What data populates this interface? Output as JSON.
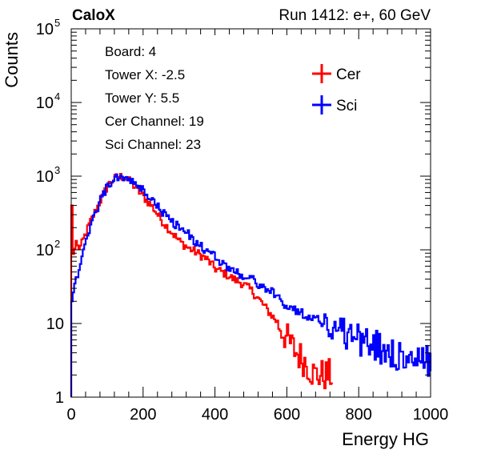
{
  "header": {
    "left_label": "CaloX",
    "right_label": "Run 1412: e+, 60 GeV"
  },
  "info_box": {
    "lines": [
      "Board: 4",
      "Tower X: -2.5",
      "Tower Y: 5.5",
      "Cer Channel: 19",
      "Sci Channel: 23"
    ]
  },
  "legend": {
    "items": [
      {
        "label": "Cer",
        "color": "#ff0000"
      },
      {
        "label": "Sci",
        "color": "#0000ff"
      }
    ]
  },
  "chart_data": {
    "type": "line",
    "style": "step histogram",
    "title": "",
    "xlabel": "Energy HG",
    "ylabel": "Counts",
    "xlim": [
      0,
      1000
    ],
    "ylim": [
      1,
      100000
    ],
    "yscale": "log",
    "grid": false,
    "legend_position": "top-right",
    "x_ticks": [
      0,
      200,
      400,
      600,
      800,
      1000
    ],
    "y_ticks": [
      {
        "base": "1",
        "exp": ""
      },
      {
        "base": "10",
        "exp": ""
      },
      {
        "base": "10",
        "exp": "2"
      },
      {
        "base": "10",
        "exp": "3"
      },
      {
        "base": "10",
        "exp": "4"
      },
      {
        "base": "10",
        "exp": "5"
      }
    ],
    "series": [
      {
        "name": "Cer",
        "color": "#ff0000",
        "points": [
          [
            0,
            400
          ],
          [
            5,
            60
          ],
          [
            10,
            150
          ],
          [
            15,
            110
          ],
          [
            25,
            110
          ],
          [
            35,
            150
          ],
          [
            50,
            230
          ],
          [
            75,
            420
          ],
          [
            100,
            750
          ],
          [
            115,
            900
          ],
          [
            130,
            1000
          ],
          [
            150,
            950
          ],
          [
            175,
            720
          ],
          [
            200,
            520
          ],
          [
            225,
            380
          ],
          [
            250,
            250
          ],
          [
            275,
            180
          ],
          [
            300,
            130
          ],
          [
            325,
            105
          ],
          [
            350,
            90
          ],
          [
            375,
            75
          ],
          [
            400,
            55
          ],
          [
            425,
            48
          ],
          [
            450,
            40
          ],
          [
            475,
            35
          ],
          [
            500,
            28
          ],
          [
            525,
            20
          ],
          [
            550,
            14
          ],
          [
            575,
            10
          ],
          [
            600,
            6
          ],
          [
            625,
            4
          ],
          [
            650,
            3
          ],
          [
            675,
            2
          ],
          [
            700,
            2
          ],
          [
            725,
            2
          ]
        ]
      },
      {
        "name": "Sci",
        "color": "#0000ff",
        "points": [
          [
            0,
            20
          ],
          [
            10,
            40
          ],
          [
            20,
            55
          ],
          [
            35,
            100
          ],
          [
            50,
            200
          ],
          [
            75,
            420
          ],
          [
            100,
            750
          ],
          [
            120,
            900
          ],
          [
            135,
            990
          ],
          [
            150,
            950
          ],
          [
            175,
            780
          ],
          [
            200,
            620
          ],
          [
            225,
            470
          ],
          [
            250,
            330
          ],
          [
            275,
            250
          ],
          [
            300,
            200
          ],
          [
            325,
            160
          ],
          [
            350,
            120
          ],
          [
            375,
            95
          ],
          [
            400,
            80
          ],
          [
            425,
            62
          ],
          [
            450,
            52
          ],
          [
            475,
            45
          ],
          [
            500,
            40
          ],
          [
            525,
            33
          ],
          [
            550,
            28
          ],
          [
            575,
            22
          ],
          [
            600,
            17
          ],
          [
            625,
            15
          ],
          [
            650,
            13
          ],
          [
            675,
            12
          ],
          [
            700,
            10
          ],
          [
            725,
            9
          ],
          [
            750,
            8
          ],
          [
            775,
            7
          ],
          [
            800,
            6
          ],
          [
            825,
            5
          ],
          [
            850,
            5
          ],
          [
            875,
            4
          ],
          [
            900,
            4
          ],
          [
            925,
            3
          ],
          [
            950,
            3
          ],
          [
            975,
            3
          ],
          [
            1000,
            3
          ]
        ]
      }
    ]
  }
}
